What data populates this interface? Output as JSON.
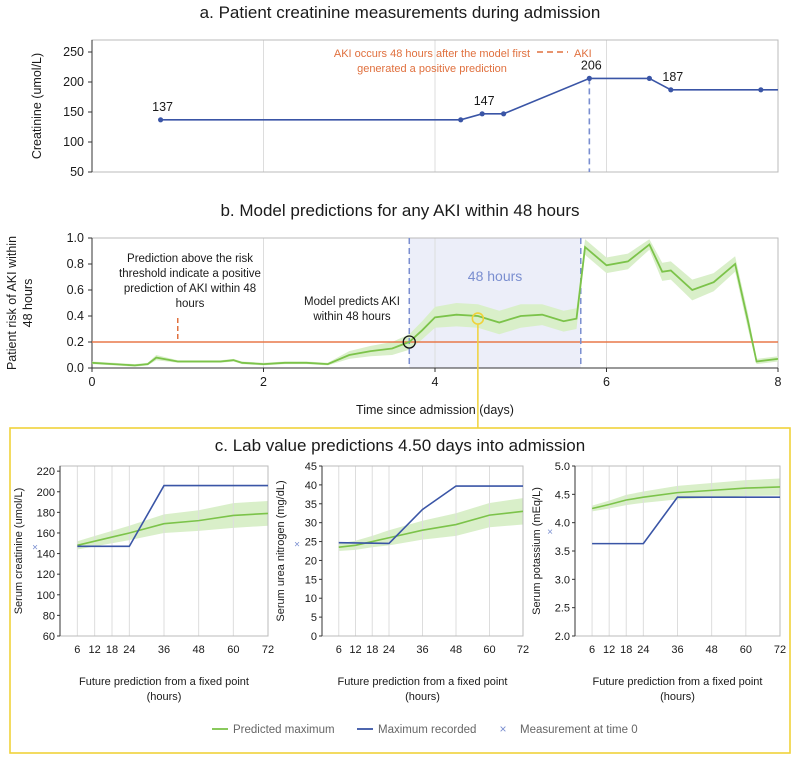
{
  "colors": {
    "series": "#3a55a6",
    "predicted": "#7cc34a",
    "band": "#d9efc9",
    "aki": "#e0703e",
    "threshold": "#e8784a",
    "window": "#eceef9",
    "window_text": "#7a8ed0",
    "highlight": "#f0d23a",
    "grid": "#dddddd"
  },
  "chart_data": [
    {
      "id": "creatinine",
      "type": "line",
      "title": "a. Patient creatinine measurements during admission",
      "xlabel": "",
      "ylabel": "Creatinine (umol/L)",
      "xlim": [
        0,
        8
      ],
      "ylim": [
        50,
        270
      ],
      "yticks": [
        50,
        100,
        150,
        200,
        250
      ],
      "x": [
        0.8,
        4.3,
        4.55,
        4.8,
        5.8,
        6.5,
        6.75,
        7.8,
        8.0
      ],
      "y": [
        137,
        137,
        147,
        147,
        206,
        206,
        187,
        187,
        187
      ],
      "point_labels": [
        {
          "x": 0.8,
          "y": 137,
          "text": "137"
        },
        {
          "x": 4.55,
          "y": 147,
          "text": "147"
        },
        {
          "x": 5.8,
          "y": 206,
          "text": "206"
        },
        {
          "x": 6.75,
          "y": 187,
          "text": "187"
        }
      ],
      "aki_x": 5.8,
      "annotation": "AKI occurs 48 hours after the model first generated a positive prediction",
      "legend_aki": "AKI"
    },
    {
      "id": "risk",
      "type": "line",
      "title": "b. Model predictions for any AKI within 48 hours",
      "xlabel": "Time since admission (days)",
      "ylabel": "Patient risk of AKI within 48 hours",
      "xlim": [
        0,
        8
      ],
      "ylim": [
        0,
        1
      ],
      "xticks": [
        0,
        2,
        4,
        6,
        8
      ],
      "yticks": [
        0.0,
        0.2,
        0.4,
        0.6,
        0.8,
        1.0
      ],
      "threshold": 0.2,
      "window": [
        3.7,
        5.7
      ],
      "window_label": "48 hours",
      "x": [
        0,
        0.25,
        0.5,
        0.65,
        0.75,
        1.0,
        1.25,
        1.5,
        1.65,
        1.75,
        2.0,
        2.25,
        2.5,
        2.75,
        3.0,
        3.25,
        3.5,
        3.7,
        3.85,
        4.0,
        4.25,
        4.5,
        4.75,
        5.0,
        5.25,
        5.5,
        5.65,
        5.75,
        6.0,
        6.25,
        6.5,
        6.65,
        6.75,
        7.0,
        7.25,
        7.5,
        7.65,
        7.75,
        8.0
      ],
      "y": [
        0.04,
        0.03,
        0.02,
        0.03,
        0.08,
        0.05,
        0.05,
        0.05,
        0.06,
        0.04,
        0.03,
        0.04,
        0.04,
        0.03,
        0.1,
        0.13,
        0.15,
        0.2,
        0.29,
        0.39,
        0.41,
        0.4,
        0.35,
        0.4,
        0.41,
        0.36,
        0.38,
        0.93,
        0.79,
        0.82,
        0.95,
        0.74,
        0.75,
        0.6,
        0.66,
        0.8,
        0.36,
        0.05,
        0.07
      ],
      "band_half": [
        0.01,
        0.01,
        0.01,
        0.01,
        0.02,
        0.01,
        0.01,
        0.01,
        0.01,
        0.01,
        0.01,
        0.01,
        0.01,
        0.01,
        0.03,
        0.04,
        0.05,
        0.06,
        0.07,
        0.08,
        0.09,
        0.09,
        0.09,
        0.09,
        0.08,
        0.08,
        0.08,
        0.06,
        0.06,
        0.06,
        0.04,
        0.07,
        0.07,
        0.08,
        0.07,
        0.06,
        0.06,
        0.02,
        0.02
      ],
      "ann_threshold": "Prediction above the risk threshold indicate a positive prediction of AKI within 48 hours",
      "ann_threshold_x": 1.0,
      "ann_predicts": "Model predicts AKI within 48 hours",
      "circle_black": {
        "x": 3.7,
        "y": 0.2
      },
      "circle_yellow": {
        "x": 4.5,
        "y": 0.38
      }
    },
    {
      "id": "lab-title",
      "title": "c. Lab value predictions 4.50 days into admission",
      "xlabel": "Future prediction from a fixed point (hours)",
      "legend": [
        {
          "label": "Predicted maximum",
          "kind": "line",
          "color": "#7cc34a"
        },
        {
          "label": "Maximum recorded",
          "kind": "line",
          "color": "#3a55a6"
        },
        {
          "label": "Measurement at time 0",
          "kind": "x",
          "color": "#7a8ed0"
        }
      ]
    },
    {
      "id": "lab-creatinine",
      "type": "line",
      "ylabel": "Serum creatinine (umol/L)",
      "xlabel": "Future prediction from a fixed point (hours)",
      "xticks": [
        6,
        12,
        18,
        24,
        36,
        48,
        60,
        72
      ],
      "ylim": [
        60,
        225
      ],
      "yticks": [
        60,
        80,
        100,
        120,
        140,
        160,
        180,
        200,
        220
      ],
      "measurement_t0": 147,
      "predicted": {
        "x": [
          6,
          12,
          18,
          24,
          36,
          48,
          60,
          72
        ],
        "y": [
          148,
          152,
          156,
          160,
          169,
          172,
          177,
          179
        ]
      },
      "band_half": [
        4,
        5,
        6,
        7,
        9,
        10,
        12,
        12
      ],
      "recorded": {
        "x": [
          6,
          24,
          36,
          72
        ],
        "y": [
          147,
          147,
          206,
          206
        ]
      }
    },
    {
      "id": "lab-urea",
      "type": "line",
      "ylabel": "Serum urea nitrogen (mg/dL)",
      "xlabel": "Future prediction from a fixed point (hours)",
      "xticks": [
        6,
        12,
        18,
        24,
        36,
        48,
        60,
        72
      ],
      "ylim": [
        0,
        45
      ],
      "yticks": [
        0,
        5,
        10,
        15,
        20,
        25,
        30,
        35,
        40,
        45
      ],
      "measurement_t0": 24.5,
      "predicted": {
        "x": [
          6,
          12,
          18,
          24,
          36,
          48,
          60,
          72
        ],
        "y": [
          23.5,
          24,
          25,
          26,
          28,
          29.5,
          32,
          33
        ]
      },
      "band_half": [
        1,
        1.2,
        1.5,
        2,
        2.5,
        3,
        3.2,
        3.5
      ],
      "recorded": {
        "x": [
          6,
          24,
          36,
          48,
          72
        ],
        "y": [
          24.7,
          24.5,
          33.5,
          39.7,
          39.7
        ]
      }
    },
    {
      "id": "lab-potassium",
      "type": "line",
      "ylabel": "Serum potassium (mEq/L)",
      "xlabel": "Future prediction from a fixed point (hours)",
      "xticks": [
        6,
        12,
        18,
        24,
        36,
        48,
        60,
        72
      ],
      "ylim": [
        2.0,
        5.0
      ],
      "yticks": [
        2.0,
        2.5,
        3.0,
        3.5,
        4.0,
        4.5,
        5.0
      ],
      "measurement_t0": 3.85,
      "predicted": {
        "x": [
          6,
          12,
          18,
          24,
          36,
          48,
          60,
          72
        ],
        "y": [
          4.25,
          4.32,
          4.4,
          4.45,
          4.53,
          4.57,
          4.61,
          4.63
        ]
      },
      "band_half": [
        0.05,
        0.07,
        0.09,
        0.1,
        0.12,
        0.13,
        0.14,
        0.15
      ],
      "recorded": {
        "x": [
          6,
          24,
          36,
          72
        ],
        "y": [
          3.63,
          3.63,
          4.45,
          4.45
        ]
      }
    }
  ]
}
